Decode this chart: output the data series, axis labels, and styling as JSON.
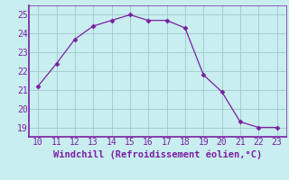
{
  "x": [
    10,
    11,
    12,
    13,
    14,
    15,
    16,
    17,
    18,
    19,
    20,
    21,
    22,
    23
  ],
  "y": [
    21.2,
    22.4,
    23.7,
    24.4,
    24.7,
    25.0,
    24.7,
    24.7,
    24.3,
    21.8,
    20.9,
    19.3,
    19.0,
    19.0
  ],
  "line_color": "#7b1fa2",
  "marker": "D",
  "marker_size": 2.5,
  "background_color": "#c8eef0",
  "grid_color": "#a0c8c8",
  "xlabel": "Windchill (Refroidissement éolien,°C)",
  "xlabel_color": "#7b1fa2",
  "tick_color": "#7b1fa2",
  "spine_color": "#7b1fa2",
  "xlim": [
    9.5,
    23.5
  ],
  "ylim": [
    18.5,
    25.5
  ],
  "xticks": [
    10,
    11,
    12,
    13,
    14,
    15,
    16,
    17,
    18,
    19,
    20,
    21,
    22,
    23
  ],
  "yticks": [
    19,
    20,
    21,
    22,
    23,
    24,
    25
  ],
  "tick_fontsize": 7,
  "xlabel_fontsize": 7.5
}
